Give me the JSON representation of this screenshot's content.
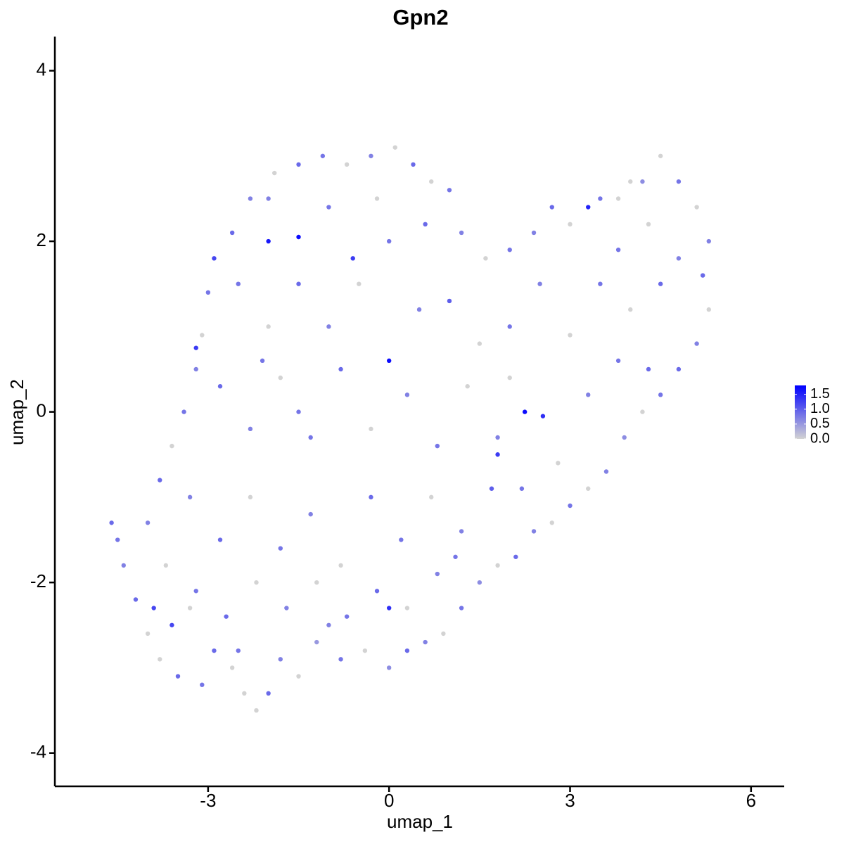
{
  "chart_data": {
    "type": "scatter",
    "title": "Gpn2",
    "xlabel": "umap_1",
    "ylabel": "umap_2",
    "xlim": [
      -5.54,
      6.55
    ],
    "xticks": [
      -3,
      0,
      3,
      6
    ],
    "ylim": [
      -4.39,
      4.4
    ],
    "yticks": [
      -4,
      -2,
      0,
      2,
      4
    ],
    "x": [
      -4.6,
      -4.5,
      -4.4,
      -4.2,
      -4.0,
      -3.8,
      -3.6,
      -3.5,
      -3.3,
      -3.1,
      -2.9,
      -2.6,
      -2.4,
      -2.2,
      -2.0,
      -1.8,
      -1.5,
      -1.2,
      -0.8,
      -0.4,
      0,
      0.3,
      0.6,
      0.9,
      1.2,
      1.5,
      1.8,
      2.1,
      2.4,
      2.7,
      3.0,
      3.3,
      3.6,
      3.9,
      4.2,
      4.5,
      4.8,
      5.1,
      5.3,
      5.2,
      5.3,
      5.1,
      4.8,
      4.5,
      4.2,
      3.8,
      3.5,
      3.3,
      3.0,
      2.7,
      2.4,
      2.0,
      1.6,
      1.2,
      1.0,
      0.7,
      0.4,
      0.1,
      -0.3,
      -0.7,
      -1.1,
      -1.5,
      -1.9,
      -2.3,
      -2.6,
      -2.9,
      -3.0,
      -3.1,
      -3.2,
      -3.4,
      -3.6,
      -3.8,
      -4.0,
      -2.0,
      -1.5,
      -0.6,
      0,
      2.25,
      2.55,
      -3.2,
      -2.5,
      -2.0,
      -1.5,
      -1.0,
      -0.5,
      0,
      0.5,
      1.0,
      1.5,
      2.0,
      2.5,
      3.0,
      3.5,
      4.0,
      4.5,
      4.8,
      4.3,
      3.8,
      -2.8,
      -2.3,
      -1.8,
      -1.3,
      -0.8,
      -0.3,
      0.3,
      0.8,
      1.3,
      1.8,
      2.8,
      3.3,
      3.8,
      4.3,
      -3.3,
      -2.8,
      -2.3,
      -1.8,
      -1.3,
      -0.8,
      -0.3,
      0.2,
      0.7,
      1.2,
      1.7,
      2.2,
      -3.7,
      -3.2,
      -2.7,
      -2.2,
      -1.7,
      -1.2,
      -0.7,
      -0.2,
      0.3,
      0.8,
      1.1,
      -3.9,
      -2.5,
      -1.0,
      0.0,
      -2.1,
      -1.0,
      -0.2,
      0.6,
      -2.0,
      1.8,
      4.0,
      2.0,
      -1.5
    ],
    "y": [
      -1.3,
      -1.5,
      -1.8,
      -2.2,
      -2.6,
      -2.9,
      -2.5,
      -3.1,
      -2.3,
      -3.2,
      -2.8,
      -3.0,
      -3.3,
      -3.5,
      -3.3,
      -2.9,
      -3.1,
      -2.7,
      -2.9,
      -2.8,
      -3.0,
      -2.8,
      -2.7,
      -2.6,
      -2.3,
      -2.0,
      -1.8,
      -1.7,
      -1.4,
      -1.3,
      -1.1,
      -0.9,
      -0.7,
      -0.3,
      0.0,
      0.2,
      0.5,
      0.8,
      1.2,
      1.6,
      2.0,
      2.4,
      2.7,
      3.0,
      2.7,
      2.5,
      2.5,
      2.4,
      2.2,
      2.4,
      2.1,
      1.9,
      1.8,
      2.1,
      2.6,
      2.7,
      2.9,
      3.1,
      3.0,
      2.9,
      3.0,
      2.9,
      2.8,
      2.5,
      2.1,
      1.8,
      1.4,
      0.9,
      0.5,
      0.0,
      -0.4,
      -0.8,
      -1.3,
      2.0,
      2.05,
      1.8,
      0.6,
      0.0,
      -0.05,
      0.75,
      1.5,
      1.0,
      1.5,
      1.0,
      1.5,
      2.0,
      1.2,
      1.3,
      0.8,
      1.0,
      1.5,
      0.9,
      1.5,
      1.2,
      1.5,
      1.8,
      2.2,
      1.9,
      0.3,
      -0.2,
      0.4,
      -0.3,
      0.5,
      -0.2,
      0.2,
      -0.4,
      0.3,
      -0.3,
      -0.6,
      0.2,
      0.6,
      0.5,
      -1.0,
      -1.5,
      -1.0,
      -1.6,
      -1.2,
      -1.8,
      -1.0,
      -1.5,
      -1.0,
      -1.4,
      -0.9,
      -0.9,
      -1.8,
      -2.1,
      -2.4,
      -2.0,
      -2.3,
      -2.0,
      -2.4,
      -2.1,
      -2.3,
      -1.9,
      -1.7,
      -2.3,
      -2.8,
      -2.5,
      -2.3,
      0.6,
      2.4,
      2.5,
      2.2,
      2.5,
      -0.5,
      2.7,
      0.4,
      0.0
    ],
    "color_values": [
      0.9,
      0.8,
      0.7,
      0.9,
      0,
      0,
      1.2,
      0.9,
      0,
      0.8,
      0.9,
      0,
      0,
      0,
      0.9,
      0.7,
      0,
      0.5,
      0.8,
      0,
      0.6,
      0.9,
      0.7,
      0,
      0.8,
      0.6,
      0,
      0.9,
      0.7,
      0,
      0.8,
      0,
      0.7,
      0.6,
      0,
      0.8,
      0.9,
      0.7,
      0,
      0.9,
      0.7,
      0,
      0.8,
      0,
      0.6,
      0,
      0.8,
      1.5,
      0,
      0.9,
      0.7,
      0.8,
      0,
      0.7,
      0.8,
      0,
      0.9,
      0,
      0.7,
      0,
      0.8,
      0.9,
      0,
      0.7,
      0.9,
      1.2,
      0.8,
      0,
      0.7,
      0.8,
      0,
      0.9,
      0.7,
      1.6,
      1.7,
      1.3,
      1.7,
      1.7,
      1.4,
      1.3,
      0.8,
      0,
      0.9,
      0.7,
      0,
      0.8,
      0.7,
      1.0,
      0,
      0.8,
      0.7,
      0,
      0.8,
      0,
      0.9,
      0.7,
      0,
      0.8,
      0.9,
      0.7,
      0,
      0.8,
      0.9,
      0,
      0.7,
      0.8,
      0,
      0.7,
      0,
      0.7,
      0.8,
      0.9,
      0.7,
      0.9,
      0,
      0.8,
      0.7,
      0,
      0.9,
      0.8,
      0,
      0.7,
      1.0,
      0.8,
      0,
      0.8,
      0.9,
      0,
      0.7,
      0,
      0.8,
      0.9,
      0,
      0.7,
      0.8,
      1.2,
      0.8,
      0.7,
      1.4,
      0.8,
      0.8,
      0,
      0.9,
      0.7,
      1.3,
      0,
      0,
      0.8
    ],
    "colorbar": {
      "lim": [
        0,
        1.8
      ],
      "colors": [
        "#d3d3d3",
        "#0000ff"
      ],
      "ticks": [
        {
          "value": 0,
          "label": "0.0"
        },
        {
          "value": 0.5,
          "label": "0.5"
        },
        {
          "value": 1.0,
          "label": "1.0"
        },
        {
          "value": 1.5,
          "label": "1.5"
        }
      ]
    }
  }
}
